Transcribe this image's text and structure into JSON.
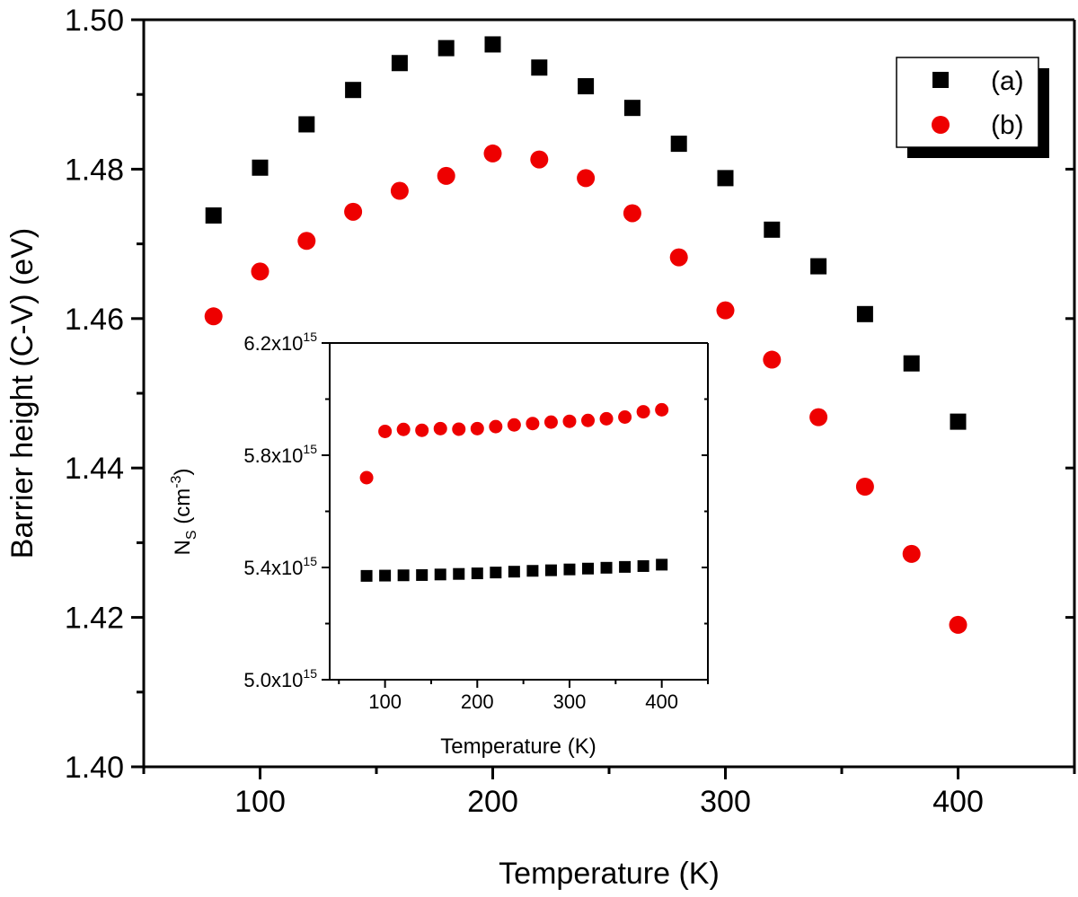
{
  "chart_data": [
    {
      "id": "main",
      "type": "scatter",
      "xlabel": "Temperature (K)",
      "ylabel": "Barrier height (C-V) (eV)",
      "xlim": [
        50,
        450
      ],
      "ylim": [
        1.4,
        1.5
      ],
      "xticks": [
        "100",
        "200",
        "300",
        "400"
      ],
      "yticks": [
        "1.40",
        "1.42",
        "1.44",
        "1.46",
        "1.48",
        "1.50"
      ],
      "legend_position": "top-right",
      "series": [
        {
          "name": "(a)",
          "marker": "square",
          "color": "#000000",
          "x": [
            80,
            100,
            120,
            140,
            160,
            180,
            200,
            220,
            240,
            260,
            280,
            300,
            320,
            340,
            360,
            380,
            400
          ],
          "y": [
            1.4738,
            1.4802,
            1.486,
            1.4906,
            1.4942,
            1.4962,
            1.4967,
            1.4936,
            1.4911,
            1.4882,
            1.4834,
            1.4788,
            1.4719,
            1.467,
            1.4606,
            1.454,
            1.4462
          ]
        },
        {
          "name": "(b)",
          "marker": "circle",
          "color": "#ee0000",
          "x": [
            80,
            100,
            120,
            140,
            160,
            180,
            200,
            220,
            240,
            260,
            280,
            300,
            320,
            340,
            360,
            380,
            400
          ],
          "y": [
            1.4603,
            1.4663,
            1.4704,
            1.4743,
            1.4771,
            1.4791,
            1.4821,
            1.4813,
            1.4788,
            1.4741,
            1.4682,
            1.4611,
            1.4545,
            1.4468,
            1.4375,
            1.4285,
            1.419
          ]
        }
      ]
    },
    {
      "id": "inset",
      "type": "scatter",
      "xlabel": "Temperature (K)",
      "ylabel_base": "N",
      "ylabel_sub": "S",
      "ylabel_unit_open": " (cm",
      "ylabel_unit_exp": "-3",
      "ylabel_unit_close": ")",
      "xlim": [
        40,
        450
      ],
      "ylim": [
        5000000000000000.0,
        6200000000000000.0
      ],
      "xticks": [
        "100",
        "200",
        "300",
        "400"
      ],
      "yticks": [
        {
          "value": 5000000000000000.0,
          "mantissa": "5.0x10",
          "exp": "15"
        },
        {
          "value": 5400000000000000.0,
          "mantissa": "5.4x10",
          "exp": "15"
        },
        {
          "value": 5800000000000000.0,
          "mantissa": "5.8x10",
          "exp": "15"
        },
        {
          "value": 6200000000000000.0,
          "mantissa": "6.2x10",
          "exp": "15"
        }
      ],
      "series": [
        {
          "marker": "square",
          "color": "#000000",
          "x": [
            80,
            100,
            120,
            140,
            160,
            180,
            200,
            220,
            240,
            260,
            280,
            300,
            320,
            340,
            360,
            380,
            400
          ],
          "y": [
            5370000000000000.0,
            5371000000000000.0,
            5372000000000000.0,
            5373000000000000.0,
            5375000000000000.0,
            5377000000000000.0,
            5379000000000000.0,
            5382000000000000.0,
            5385000000000000.0,
            5388000000000000.0,
            5390000000000000.0,
            5393000000000000.0,
            5396000000000000.0,
            5399000000000000.0,
            5402000000000000.0,
            5405000000000000.0,
            5410000000000000.0
          ]
        },
        {
          "marker": "circle",
          "color": "#ee0000",
          "x": [
            80,
            100,
            120,
            140,
            160,
            180,
            200,
            220,
            240,
            260,
            280,
            300,
            320,
            340,
            360,
            380,
            400
          ],
          "y": [
            5720000000000000.0,
            5885000000000000.0,
            5892000000000000.0,
            5889000000000000.0,
            5895000000000000.0,
            5893000000000000.0,
            5895000000000000.0,
            5902000000000000.0,
            5908000000000000.0,
            5913000000000000.0,
            5918000000000000.0,
            5921000000000000.0,
            5924000000000000.0,
            5930000000000000.0,
            5936000000000000.0,
            5955000000000000.0,
            5962000000000000.0
          ]
        }
      ]
    }
  ]
}
